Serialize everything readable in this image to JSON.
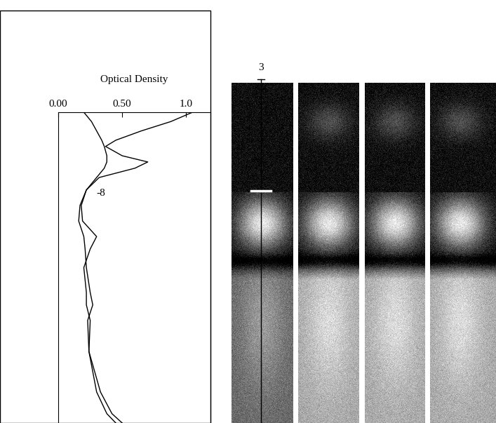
{
  "chart_data": {
    "type": "line",
    "title": "Optical Density",
    "y": [
      0,
      3,
      6,
      9,
      11,
      14,
      16,
      18,
      21,
      25,
      30,
      35,
      40,
      44,
      50,
      58,
      62,
      67,
      77,
      90,
      97,
      100
    ],
    "series": [
      {
        "color": "#000000",
        "values": [
          1.05,
          0.88,
          0.65,
          0.45,
          0.37,
          0.5,
          0.7,
          0.6,
          0.32,
          0.22,
          0.18,
          0.19,
          0.3,
          0.25,
          0.2,
          0.22,
          0.22,
          0.25,
          0.24,
          0.3,
          0.38,
          0.45
        ]
      },
      {
        "color": "#000000",
        "values": [
          0.2,
          0.26,
          0.3,
          0.34,
          0.36,
          0.38,
          0.38,
          0.36,
          0.3,
          0.22,
          0.17,
          0.16,
          0.2,
          0.21,
          0.22,
          0.25,
          0.27,
          0.23,
          0.24,
          0.33,
          0.42,
          0.5
        ]
      }
    ],
    "xlim": [
      0,
      1.19
    ],
    "xticks": [
      {
        "value": 0,
        "label": "0.00"
      },
      {
        "value": 0.5,
        "label": "0.50"
      },
      {
        "value": 1.0,
        "label": "1.0"
      }
    ],
    "ylim": [
      100,
      0
    ],
    "tick_labels": "x",
    "annotations": [
      "-8"
    ]
  },
  "gel": {
    "label": "3"
  }
}
